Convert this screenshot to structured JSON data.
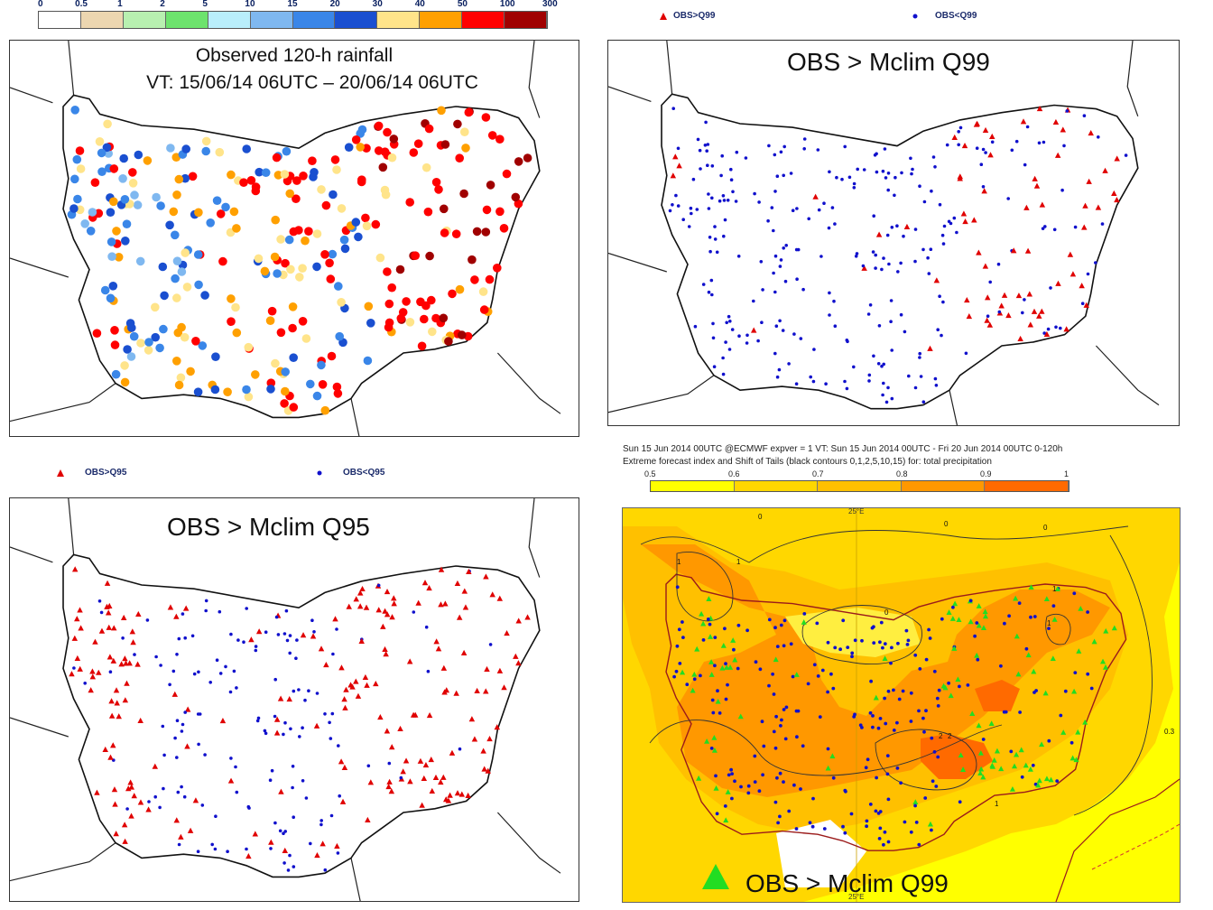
{
  "rain_legend": {
    "ticks": [
      "0",
      "0.5",
      "1",
      "2",
      "5",
      "10",
      "15",
      "20",
      "30",
      "40",
      "50",
      "100",
      "300"
    ],
    "colors": [
      "#ffffff",
      "#ecd6b0",
      "#b8f0b0",
      "#6de36d",
      "#b9eefb",
      "#7fb8f0",
      "#3a86e8",
      "#1a4fd0",
      "#ffe48a",
      "#ffa000",
      "#ff0000",
      "#a00000"
    ]
  },
  "panel_rain": {
    "title_line1": "Observed 120-h rainfall",
    "title_line2": "VT: 15/06/14 06UTC – 20/06/14 06UTC"
  },
  "panel_q99": {
    "title": "OBS > Mclim Q99",
    "legend_above": "OBS>Q99",
    "legend_below": "OBS<Q99"
  },
  "panel_q95": {
    "title": "OBS > Mclim Q95",
    "legend_above": "OBS>Q95",
    "legend_below": "OBS<Q95"
  },
  "panel_efi": {
    "header_line1": "Sun 15 Jun 2014 00UTC @ECMWF expver = 1 VT: Sun 15 Jun 2014 00UTC - Fri 20 Jun 2014 00UTC  0-120h",
    "header_line2": "Extreme forecast index and Shift of Tails (black contours 0,1,2,5,10,15) for: total precipitation",
    "scale_ticks": [
      "0.5",
      "0.6",
      "0.7",
      "0.8",
      "0.9",
      "1"
    ],
    "scale_colors": [
      "#ffff00",
      "#ffd700",
      "#ffc000",
      "#ff9800",
      "#ff6a00"
    ],
    "lon_label": "25°E",
    "contour_labels": [
      "0",
      "0",
      "0",
      "0",
      "1",
      "1",
      "1",
      "1",
      "2",
      "2",
      "1",
      "0.3"
    ],
    "caption": "OBS > Mclim Q99",
    "colors": {
      "triangle": "#22dd22",
      "dot": "#1010cc"
    }
  },
  "colors": {
    "red": "#e00000",
    "blue": "#1010cc"
  }
}
